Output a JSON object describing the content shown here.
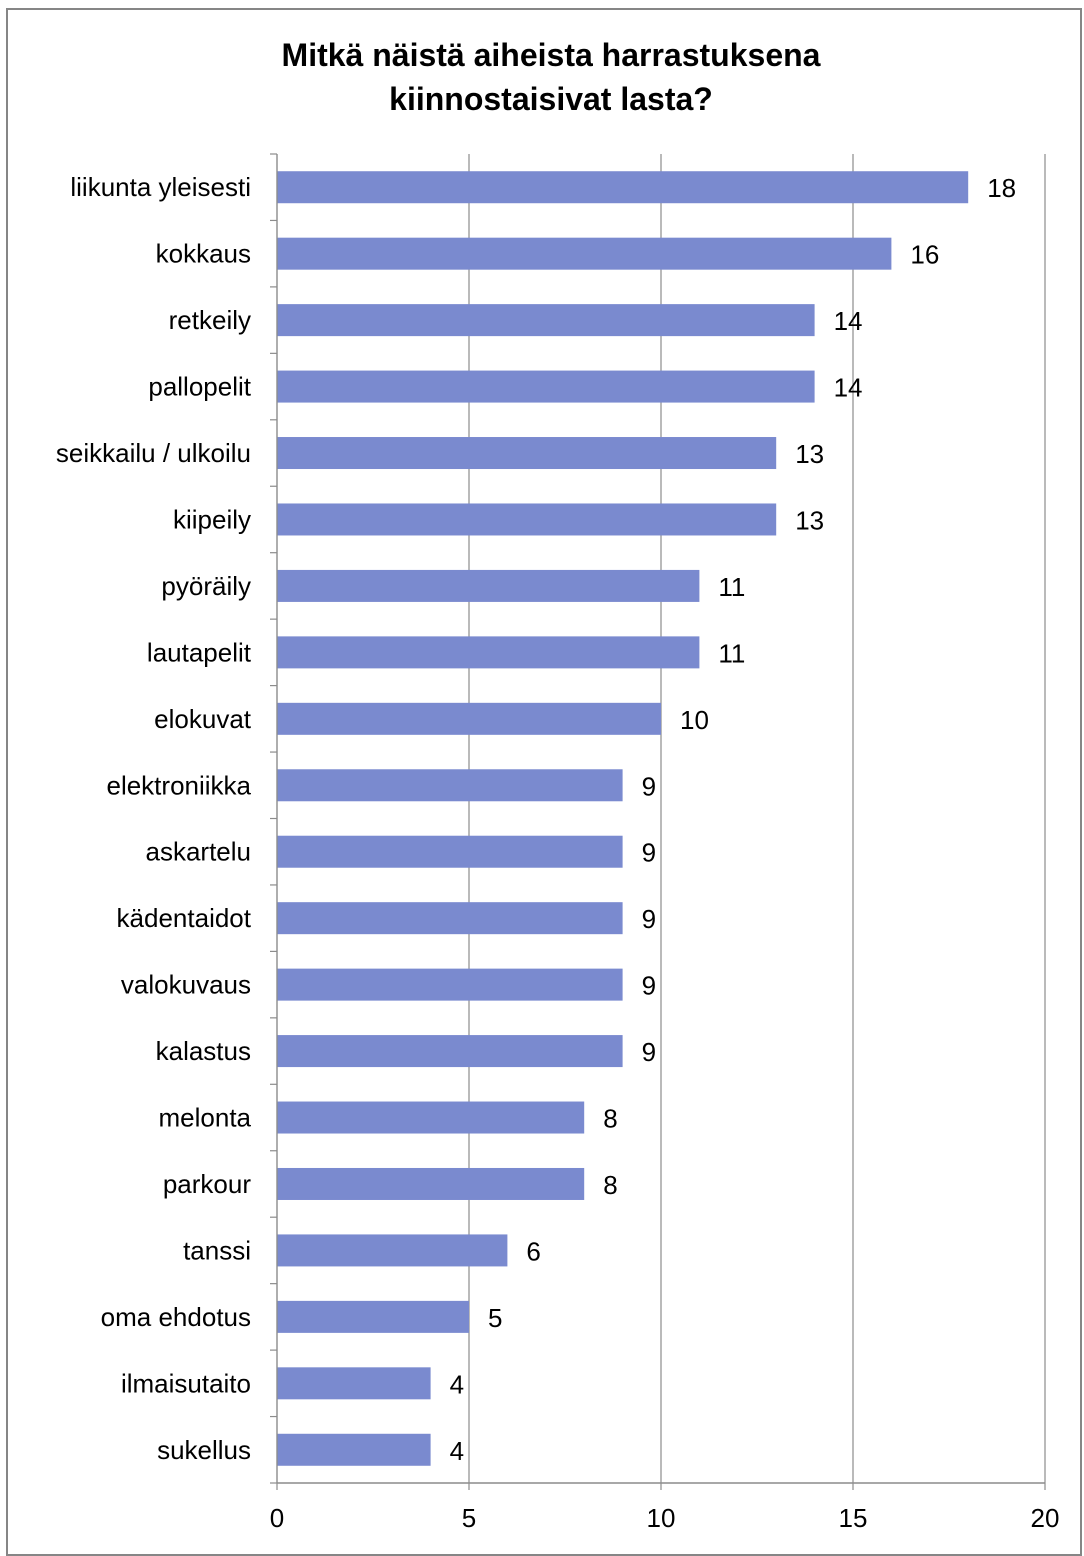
{
  "chart_data": {
    "type": "bar",
    "orientation": "horizontal",
    "title_lines": [
      "Mitkä näistä aiheista harrastuksena",
      "kiinnostaisivat lasta?"
    ],
    "categories": [
      "liikunta yleisesti",
      "kokkaus",
      "retkeily",
      "pallopelit",
      "seikkailu / ulkoilu",
      "kiipeily",
      "pyöräily",
      "lautapelit",
      "elokuvat",
      "elektroniikka",
      "askartelu",
      "kädentaidot",
      "valokuvaus",
      "kalastus",
      "melonta",
      "parkour",
      "tanssi",
      "oma ehdotus",
      "ilmaisutaito",
      "sukellus"
    ],
    "values": [
      18,
      16,
      14,
      14,
      13,
      13,
      11,
      11,
      10,
      9,
      9,
      9,
      9,
      9,
      8,
      8,
      6,
      5,
      4,
      4
    ],
    "xlim": [
      0,
      20
    ],
    "xticks": [
      0,
      5,
      10,
      15,
      20
    ],
    "bar_color": "#7a8acf",
    "grid": "vertical",
    "data_labels": true
  }
}
